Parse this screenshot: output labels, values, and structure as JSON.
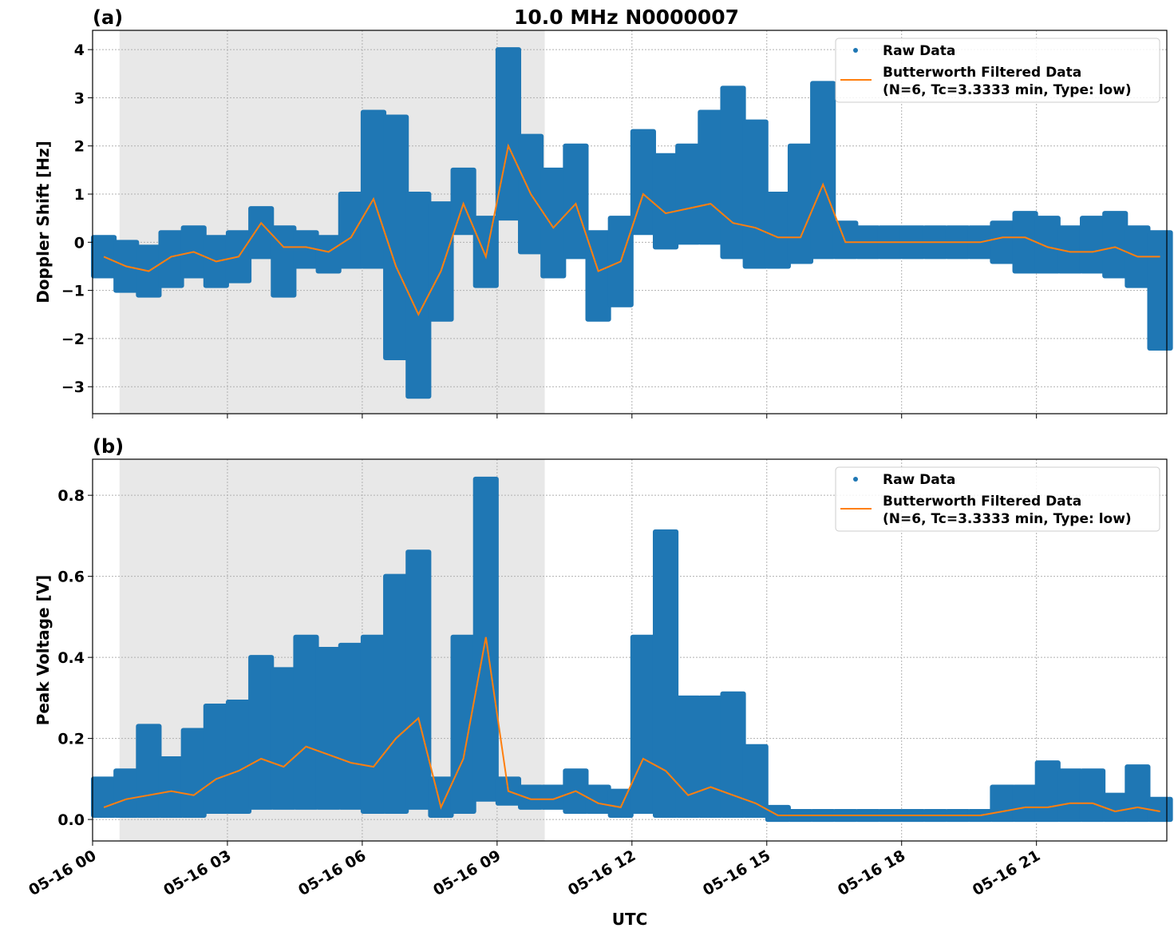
{
  "title": "10.0 MHz N0000007",
  "colors": {
    "raw": "#1f77b4",
    "filtered": "#ff7f0e",
    "shade": "#e8e8e8"
  },
  "chart_data": [
    {
      "type": "scatter",
      "panel_label": "(a)",
      "ylabel": "Doppler Shift [Hz]",
      "xlabel": "",
      "xlim_hours": [
        0,
        23.9
      ],
      "ylim": [
        -3.56,
        4.4
      ],
      "yticks": [
        4,
        3,
        2,
        1,
        0,
        -1,
        -2,
        -3
      ],
      "ytick_labels": [
        "4",
        "3",
        "2",
        "1",
        "0",
        "−1",
        "−2",
        "−3"
      ],
      "grid": true,
      "legend_position": "top-right",
      "shaded_span_hours": [
        0.6,
        10.06
      ],
      "legend": [
        "Raw Data",
        "Butterworth Filtered Data",
        "(N=6, Tc=3.3333 min, Type: low)"
      ],
      "x_hours": [
        0,
        0.5,
        1,
        1.5,
        2,
        2.5,
        3,
        3.5,
        4,
        4.5,
        5,
        5.5,
        6,
        6.5,
        7,
        7.5,
        8,
        8.5,
        9,
        9.5,
        10,
        10.5,
        11,
        11.5,
        12,
        12.5,
        13,
        13.5,
        14,
        14.5,
        15,
        15.5,
        16,
        16.5,
        17,
        17.5,
        18,
        18.5,
        19,
        19.5,
        20,
        20.5,
        21,
        21.5,
        22,
        22.5,
        23,
        23.5
      ],
      "series": [
        {
          "name": "Butterworth Filtered Data",
          "values": [
            -0.3,
            -0.5,
            -0.6,
            -0.3,
            -0.2,
            -0.4,
            -0.3,
            0.4,
            -0.1,
            -0.1,
            -0.2,
            0.1,
            0.9,
            -0.5,
            -1.5,
            -0.6,
            0.8,
            -0.3,
            2.0,
            1.0,
            0.3,
            0.8,
            -0.6,
            -0.4,
            1.0,
            0.6,
            0.7,
            0.8,
            0.4,
            0.3,
            0.1,
            0.1,
            1.2,
            0.0,
            0.0,
            0.0,
            0.0,
            0.0,
            0.0,
            0.0,
            0.1,
            0.1,
            -0.1,
            -0.2,
            -0.2,
            -0.1,
            -0.3,
            -0.3
          ]
        },
        {
          "name": "Raw Data",
          "min": [
            -0.7,
            -1.0,
            -1.1,
            -0.9,
            -0.7,
            -0.9,
            -0.8,
            -0.3,
            -1.1,
            -0.5,
            -0.6,
            -0.5,
            -0.5,
            -2.4,
            -3.2,
            -1.6,
            0.2,
            -0.9,
            0.5,
            -0.2,
            -0.7,
            -0.3,
            -1.6,
            -1.3,
            0.2,
            -0.1,
            0.0,
            0.0,
            -0.3,
            -0.5,
            -0.5,
            -0.4,
            -0.3,
            -0.3,
            -0.3,
            -0.3,
            -0.3,
            -0.3,
            -0.3,
            -0.3,
            -0.4,
            -0.6,
            -0.6,
            -0.6,
            -0.6,
            -0.7,
            -0.9,
            -2.2
          ],
          "max": [
            0.1,
            0.0,
            -0.1,
            0.2,
            0.3,
            0.1,
            0.2,
            0.7,
            0.3,
            0.2,
            0.1,
            1.0,
            2.7,
            2.6,
            1.0,
            0.8,
            1.5,
            0.5,
            4.0,
            2.2,
            1.5,
            2.0,
            0.2,
            0.5,
            2.3,
            1.8,
            2.0,
            2.7,
            3.2,
            2.5,
            1.0,
            2.0,
            3.3,
            0.4,
            0.3,
            0.3,
            0.3,
            0.3,
            0.3,
            0.3,
            0.4,
            0.6,
            0.5,
            0.3,
            0.5,
            0.6,
            0.3,
            0.2
          ]
        }
      ]
    },
    {
      "type": "scatter",
      "panel_label": "(b)",
      "ylabel": "Peak Voltage [V]",
      "xlabel": "UTC",
      "xlim_hours": [
        0,
        23.9
      ],
      "ylim": [
        -0.053,
        0.889
      ],
      "yticks": [
        0.8,
        0.6,
        0.4,
        0.2,
        0.0
      ],
      "ytick_labels": [
        "0.8",
        "0.6",
        "0.4",
        "0.2",
        "0.0"
      ],
      "xticks_hours": [
        0,
        3,
        6,
        9,
        12,
        15,
        18,
        21
      ],
      "xtick_labels": [
        "05-16 00",
        "05-16 03",
        "05-16 06",
        "05-16 09",
        "05-16 12",
        "05-16 15",
        "05-16 18",
        "05-16 21"
      ],
      "grid": true,
      "legend_position": "top-right",
      "shaded_span_hours": [
        0.6,
        10.06
      ],
      "legend": [
        "Raw Data",
        "Butterworth Filtered Data",
        "(N=6, Tc=3.3333 min, Type: low)"
      ],
      "x_hours": [
        0,
        0.5,
        1,
        1.5,
        2,
        2.5,
        3,
        3.5,
        4,
        4.5,
        5,
        5.5,
        6,
        6.5,
        7,
        7.5,
        8,
        8.5,
        9,
        9.5,
        10,
        10.5,
        11,
        11.5,
        12,
        12.5,
        13,
        13.5,
        14,
        14.5,
        15,
        15.5,
        16,
        16.5,
        17,
        17.5,
        18,
        18.5,
        19,
        19.5,
        20,
        20.5,
        21,
        21.5,
        22,
        22.5,
        23,
        23.5
      ],
      "series": [
        {
          "name": "Butterworth Filtered Data",
          "values": [
            0.03,
            0.05,
            0.06,
            0.07,
            0.06,
            0.1,
            0.12,
            0.15,
            0.13,
            0.18,
            0.16,
            0.14,
            0.13,
            0.2,
            0.25,
            0.03,
            0.15,
            0.45,
            0.07,
            0.05,
            0.05,
            0.07,
            0.04,
            0.03,
            0.15,
            0.12,
            0.06,
            0.08,
            0.06,
            0.04,
            0.01,
            0.01,
            0.01,
            0.01,
            0.01,
            0.01,
            0.01,
            0.01,
            0.01,
            0.01,
            0.02,
            0.03,
            0.03,
            0.04,
            0.04,
            0.02,
            0.03,
            0.02
          ]
        },
        {
          "name": "Raw Data",
          "min": [
            0.01,
            0.01,
            0.01,
            0.01,
            0.01,
            0.02,
            0.02,
            0.03,
            0.03,
            0.03,
            0.03,
            0.03,
            0.02,
            0.02,
            0.03,
            0.01,
            0.02,
            0.05,
            0.04,
            0.03,
            0.03,
            0.02,
            0.02,
            0.01,
            0.02,
            0.01,
            0.01,
            0.01,
            0.01,
            0.01,
            0.0,
            0.0,
            0.0,
            0.0,
            0.0,
            0.0,
            0.0,
            0.0,
            0.0,
            0.0,
            0.0,
            0.0,
            0.0,
            0.0,
            0.0,
            0.0,
            0.0,
            0.0
          ],
          "max": [
            0.1,
            0.12,
            0.23,
            0.15,
            0.22,
            0.28,
            0.29,
            0.4,
            0.37,
            0.45,
            0.42,
            0.43,
            0.45,
            0.6,
            0.66,
            0.1,
            0.45,
            0.84,
            0.1,
            0.08,
            0.08,
            0.12,
            0.08,
            0.07,
            0.45,
            0.71,
            0.3,
            0.3,
            0.31,
            0.18,
            0.03,
            0.02,
            0.02,
            0.02,
            0.02,
            0.02,
            0.02,
            0.02,
            0.02,
            0.02,
            0.08,
            0.08,
            0.14,
            0.12,
            0.12,
            0.06,
            0.13,
            0.05
          ]
        }
      ]
    }
  ]
}
